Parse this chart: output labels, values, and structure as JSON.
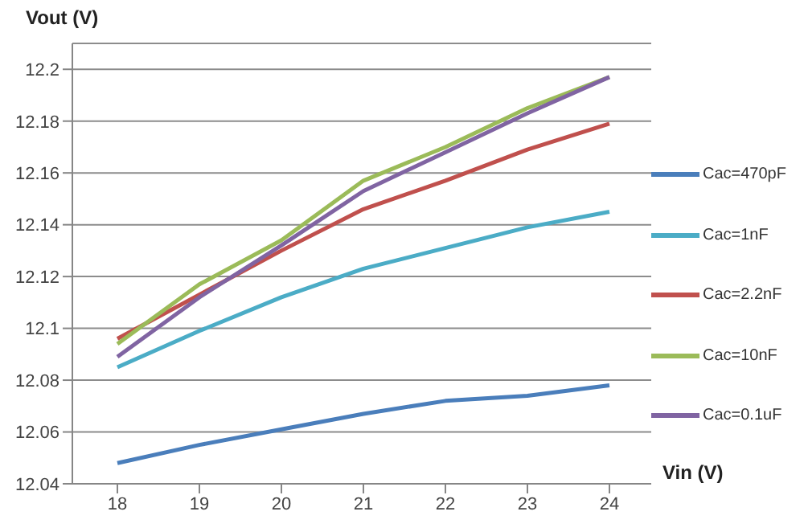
{
  "chart_data": {
    "type": "line",
    "xlabel": "Vin (V)",
    "ylabel": "Vout (V)",
    "categories": [
      "18",
      "19",
      "20",
      "21",
      "22",
      "23",
      "24"
    ],
    "series": [
      {
        "name": "Cac=470pF",
        "color": "#4a7ebb",
        "values": [
          12.048,
          12.055,
          12.061,
          12.067,
          12.072,
          12.074,
          12.078
        ]
      },
      {
        "name": "Cac=1nF",
        "color": "#4bacc6",
        "values": [
          12.085,
          12.099,
          12.112,
          12.123,
          12.131,
          12.139,
          12.145
        ]
      },
      {
        "name": "Cac=2.2nF",
        "color": "#c0504d",
        "values": [
          12.096,
          12.113,
          12.13,
          12.146,
          12.157,
          12.169,
          12.179
        ]
      },
      {
        "name": "Cac=10nF",
        "color": "#9bbb59",
        "values": [
          12.094,
          12.117,
          12.134,
          12.157,
          12.17,
          12.185,
          12.197
        ]
      },
      {
        "name": "Cac=0.1uF",
        "color": "#8064a2",
        "values": [
          12.089,
          12.112,
          12.132,
          12.153,
          12.168,
          12.183,
          12.197
        ]
      }
    ],
    "ylim": [
      12.04,
      12.21
    ],
    "yticks": [
      12.04,
      12.06,
      12.08,
      12.1,
      12.12,
      12.14,
      12.16,
      12.18,
      12.2
    ],
    "grid": "y",
    "legend": "right",
    "marker": "none",
    "line_style": "solid"
  }
}
